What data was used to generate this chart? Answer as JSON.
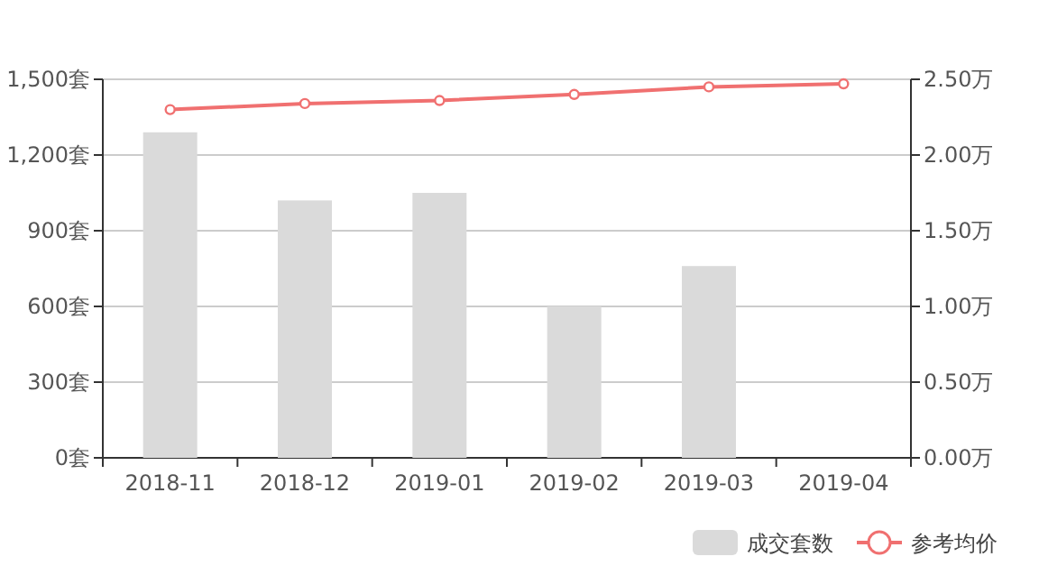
{
  "chart_data": {
    "type": "bar",
    "categories": [
      "2018-11",
      "2018-12",
      "2019-01",
      "2019-02",
      "2019-03",
      "2019-04"
    ],
    "series": [
      {
        "name": "成交套数",
        "color": "#dadada",
        "values": [
          1290,
          1020,
          1050,
          600,
          760,
          null
        ]
      },
      {
        "name": "参考均价",
        "type": "line",
        "axis": "y2",
        "color": "#f07070",
        "marker": "circle",
        "line_style": "solid",
        "values": [
          2.3,
          2.34,
          2.36,
          2.4,
          2.45,
          2.47
        ]
      }
    ],
    "ylim": [
      0,
      1500
    ],
    "yticks": [
      {
        "value": 0,
        "label": "0套"
      },
      {
        "value": 300,
        "label": "300套"
      },
      {
        "value": 600,
        "label": "600套"
      },
      {
        "value": 900,
        "label": "900套"
      },
      {
        "value": 1200,
        "label": "1,200套"
      },
      {
        "value": 1500,
        "label": "1,500套"
      }
    ],
    "y2lim": [
      0,
      2.5
    ],
    "y2ticks": [
      {
        "value": 0,
        "label": "0.00万"
      },
      {
        "value": 0.5,
        "label": "0.50万"
      },
      {
        "value": 1,
        "label": "1.00万"
      },
      {
        "value": 1.5,
        "label": "1.50万"
      },
      {
        "value": 2,
        "label": "2.00万"
      },
      {
        "value": 2.5,
        "label": "2.50万"
      }
    ],
    "grid": "y",
    "legend": "bottom right"
  }
}
